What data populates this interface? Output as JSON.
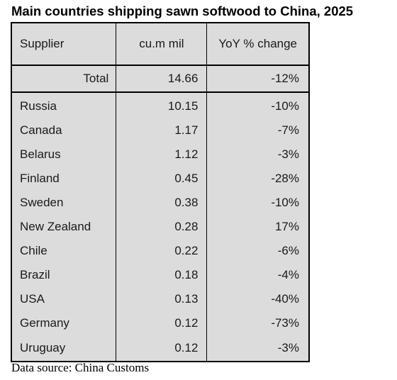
{
  "title": "Main countries shipping sawn softwood to China, 2025",
  "source": "Data source: China Customs",
  "chart_data": {
    "type": "table",
    "title": "Main countries shipping sawn softwood to China, 2025",
    "columns": [
      "Supplier",
      "cu.m mil",
      "YoY % change"
    ],
    "total": {
      "label": "Total",
      "volume": "14.66",
      "change": "-12%"
    },
    "rows": [
      {
        "supplier": "Russia",
        "volume": "10.15",
        "change": "-10%"
      },
      {
        "supplier": "Canada",
        "volume": "1.17",
        "change": "-7%"
      },
      {
        "supplier": "Belarus",
        "volume": "1.12",
        "change": "-3%"
      },
      {
        "supplier": "Finland",
        "volume": "0.45",
        "change": "-28%"
      },
      {
        "supplier": "Sweden",
        "volume": "0.38",
        "change": "-10%"
      },
      {
        "supplier": "New Zealand",
        "volume": "0.28",
        "change": "17%"
      },
      {
        "supplier": "Chile",
        "volume": "0.22",
        "change": "-6%"
      },
      {
        "supplier": "Brazil",
        "volume": "0.18",
        "change": "-4%"
      },
      {
        "supplier": "USA",
        "volume": "0.13",
        "change": "-40%"
      },
      {
        "supplier": "Germany",
        "volume": "0.12",
        "change": "-73%"
      },
      {
        "supplier": "Uruguay",
        "volume": "0.12",
        "change": "-3%"
      }
    ],
    "background_color": "#dcdcdc",
    "border_color": "#000000"
  }
}
